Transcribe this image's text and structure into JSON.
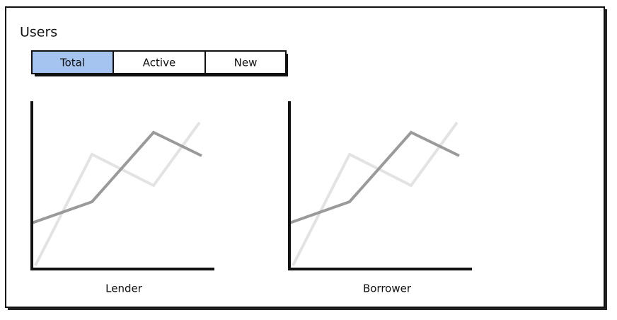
{
  "header": {
    "title": "Users"
  },
  "tabs": [
    {
      "label": "Total",
      "selected": true
    },
    {
      "label": "Active",
      "selected": false
    },
    {
      "label": "New",
      "selected": false
    }
  ],
  "charts": [
    {
      "label": "Lender"
    },
    {
      "label": "Borrower"
    }
  ]
}
